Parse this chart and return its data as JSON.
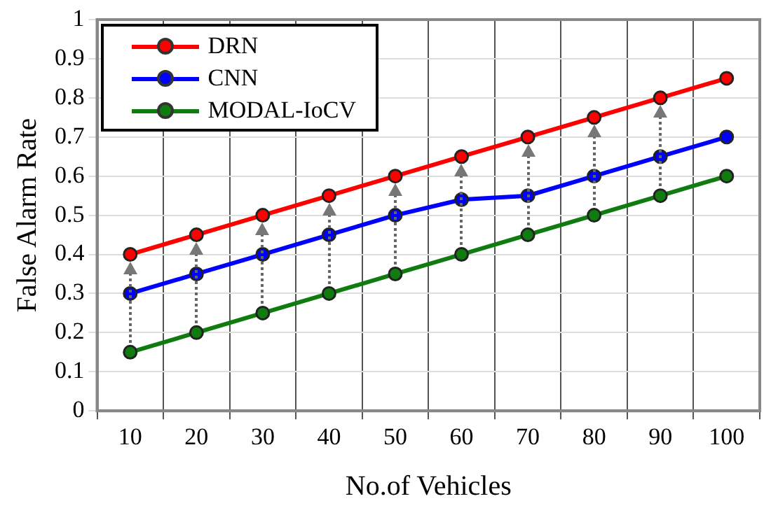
{
  "chart_data": {
    "type": "line",
    "xlabel": "No.of Vehicles",
    "ylabel": "False Alarm Rate",
    "categories": [
      "10",
      "20",
      "30",
      "40",
      "50",
      "60",
      "70",
      "80",
      "90",
      "100"
    ],
    "series": [
      {
        "name": "DRN",
        "color": "#ff0000",
        "values": [
          0.4,
          0.45,
          0.5,
          0.55,
          0.6,
          0.65,
          0.7,
          0.75,
          0.8,
          0.85
        ]
      },
      {
        "name": "CNN",
        "color": "#0000ff",
        "values": [
          0.3,
          0.35,
          0.4,
          0.45,
          0.5,
          0.54,
          0.55,
          0.6,
          0.65,
          0.7
        ]
      },
      {
        "name": "MODAL-IoCV",
        "color": "#107c10",
        "values": [
          0.15,
          0.2,
          0.25,
          0.3,
          0.35,
          0.4,
          0.45,
          0.5,
          0.55,
          0.6
        ]
      }
    ],
    "ylim": [
      0,
      1
    ],
    "yticks": [
      0,
      0.1,
      0.2,
      0.3,
      0.4,
      0.5,
      0.6,
      0.7,
      0.8,
      0.9,
      1
    ],
    "grid": true,
    "legend": "top left",
    "marker": "circle",
    "line_style": "solid"
  }
}
